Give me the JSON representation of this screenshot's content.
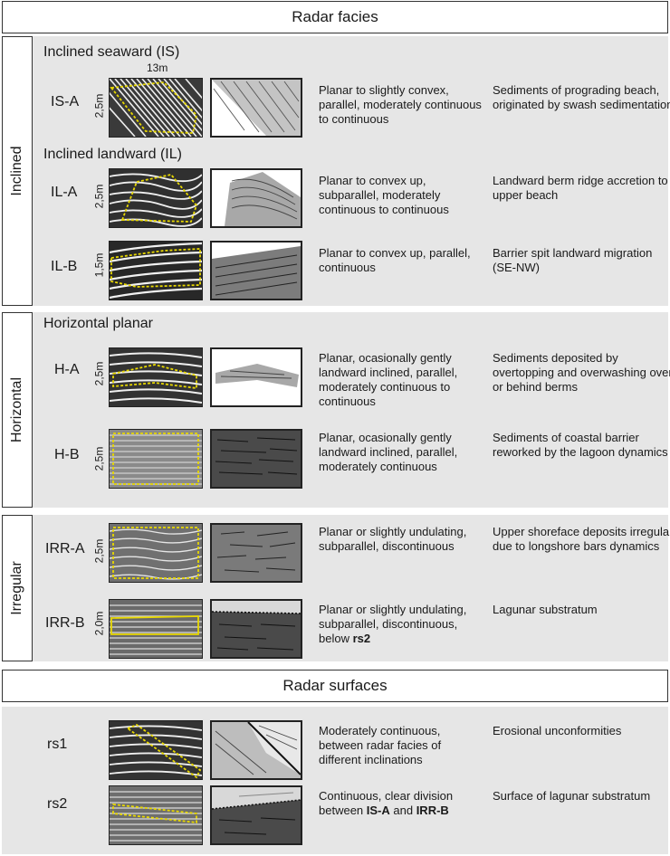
{
  "header_facies": "Radar facies",
  "header_surfaces": "Radar surfaces",
  "groups": {
    "inclined": "Inclined",
    "horizontal": "Horizontal",
    "irregular": "Irregular"
  },
  "subheadings": {
    "is": "Inclined seaward (IS)",
    "il": "Inclined landward (IL)",
    "hp": "Horizontal planar"
  },
  "scale_13m": "13m",
  "rows": [
    {
      "code": "IS-A",
      "scale": "2,5m",
      "desc": "Planar to slightly convex, parallel, moderately continuous to continuous",
      "interp": "Sediments of prograding beach, originated by swash sedimentation"
    },
    {
      "code": "IL-A",
      "scale": "2,5m",
      "desc": "Planar to convex up, subparallel, moderately continuous to continuous",
      "interp": "Landward berm ridge accretion to upper beach"
    },
    {
      "code": "IL-B",
      "scale": "1,5m",
      "desc": "Planar to convex up, parallel, continuous",
      "interp": "Barrier spit landward migration (SE-NW)"
    },
    {
      "code": "H-A",
      "scale": "2,5m",
      "desc": "Planar, ocasionally gently landward inclined, parallel, moderately continuous to continuous",
      "interp": "Sediments deposited by overtopping and overwashing over or behind berms"
    },
    {
      "code": "H-B",
      "scale": "2,5m",
      "desc": "Planar, ocasionally gently landward inclined, parallel, moderately continuous",
      "interp": "Sediments of coastal barrier reworked by the lagoon dynamics"
    },
    {
      "code": "IRR-A",
      "scale": "2,5m",
      "desc": "Planar or slightly undulating, subparallel, discontinuous",
      "interp": "Upper shoreface deposits irregular due to longshore bars dynamics"
    },
    {
      "code": "IRR-B",
      "scale": "2,0m",
      "desc_pre": "Planar or slightly undulating, subparallel, discontinuous, below ",
      "desc_bold": "rs2",
      "interp": "Lagunar substratum"
    }
  ],
  "surfaces": [
    {
      "code": "rs1",
      "desc": "Moderately continuous, between radar facies of different inclinations",
      "interp": "Erosional unconformities"
    },
    {
      "code": "rs2",
      "desc_pre": "Continuous, clear division between ",
      "desc_b1": "IS-A",
      "desc_mid": " and ",
      "desc_b2": "IRR-B",
      "interp": "Surface of lagunar substratum"
    }
  ],
  "colors": {
    "panel": "#e6e6e6",
    "outline": "#e8d800",
    "dark_fill": "#4a4a4a",
    "mid_fill": "#7a7a7a",
    "light_fill": "#b8b8b8"
  }
}
